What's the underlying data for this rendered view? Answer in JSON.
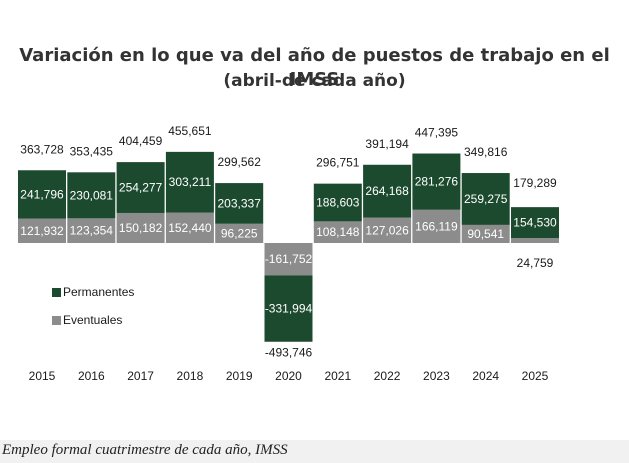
{
  "caption": "Empleo formal cuatrimestre de cada año, IMSS",
  "chart_data": {
    "type": "bar",
    "stacked": true,
    "title": "Variación en lo que va del año de puestos de trabajo en el IMSS",
    "subtitle": "(abril-de cada año)",
    "categories": [
      "2015",
      "2016",
      "2017",
      "2018",
      "2019",
      "2020",
      "2021",
      "2022",
      "2023",
      "2024",
      "2025"
    ],
    "series": [
      {
        "name": "Permanentes",
        "color": "#1c4a2e",
        "values": [
          241796,
          230081,
          254277,
          303211,
          203337,
          -331994,
          188603,
          264168,
          281276,
          259275,
          154530
        ],
        "labels": [
          "241,796",
          "230,081",
          "254,277",
          "303,211",
          "203,337",
          "-331,994",
          "188,603",
          "264,168",
          "281,276",
          "259,275",
          "154,530"
        ]
      },
      {
        "name": "Eventuales",
        "color": "#8c8c8c",
        "values": [
          121932,
          123354,
          150182,
          152440,
          96225,
          -161752,
          108148,
          127026,
          166119,
          90541,
          24759
        ],
        "labels": [
          "121,932",
          "123,354",
          "150,182",
          "152,440",
          "96,225",
          "-161,752",
          "108,148",
          "127,026",
          "166,119",
          "90,541",
          "24,759"
        ]
      }
    ],
    "totals": [
      363728,
      353435,
      404459,
      455651,
      299562,
      -493746,
      296751,
      391194,
      447395,
      349816,
      179289
    ],
    "total_labels": [
      "363,728",
      "353,435",
      "404,459",
      "455,651",
      "299,562",
      "-493,746",
      "296,751",
      "391,194",
      "447,395",
      "349,816",
      "179,289"
    ],
    "legend": {
      "position": "left",
      "entries": [
        "Permanentes",
        "Eventuales"
      ]
    },
    "grid": false
  }
}
